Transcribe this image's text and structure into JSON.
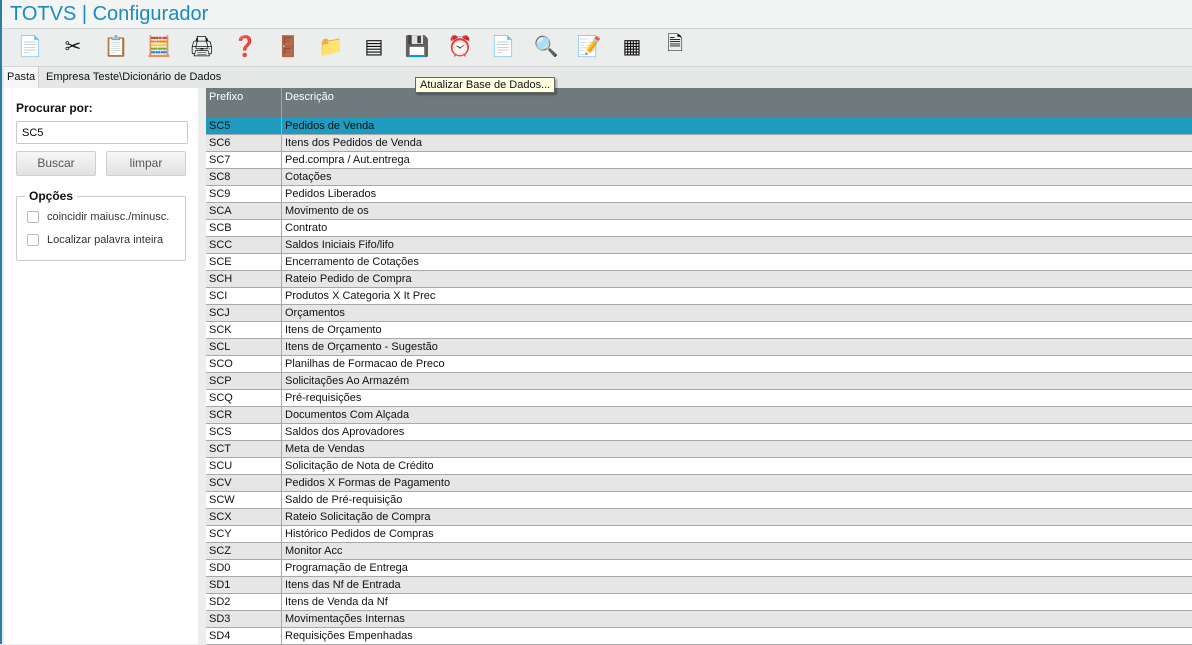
{
  "app_title": "TOTVS | Configurador",
  "toolbar": [
    {
      "icon": "copy-icon",
      "glyph": "📄"
    },
    {
      "icon": "cut-icon",
      "glyph": "✂"
    },
    {
      "icon": "paste-icon",
      "glyph": "📋"
    },
    {
      "icon": "calculator-icon",
      "glyph": "🧮"
    },
    {
      "icon": "print-icon",
      "glyph": "🖨"
    },
    {
      "icon": "help-icon",
      "glyph": "❓"
    },
    {
      "icon": "exit-icon",
      "glyph": "🚪"
    },
    {
      "icon": "folder-icon",
      "glyph": "📁"
    },
    {
      "icon": "list-icon",
      "glyph": "▤"
    },
    {
      "icon": "save-database-icon",
      "glyph": "💾"
    },
    {
      "icon": "scheduled-save-icon",
      "glyph": "⏰"
    },
    {
      "icon": "add-document-icon",
      "glyph": "📄"
    },
    {
      "icon": "search-document-icon",
      "glyph": "🔍"
    },
    {
      "icon": "edit-icon",
      "glyph": "📝"
    },
    {
      "icon": "table-icon",
      "glyph": "▦"
    },
    {
      "icon": "document-icon",
      "glyph": "🗎"
    }
  ],
  "tooltip": "Atualizar Base de Dados...",
  "path": {
    "label": "Pasta",
    "value": "Empresa Teste\\Dicionário de Dados"
  },
  "search": {
    "label": "Procurar por:",
    "value": "SC5",
    "buscar": "Buscar",
    "limpar": "limpar"
  },
  "options": {
    "title": "Opções",
    "case": "coincidir maiusc./minusc.",
    "whole": "Localizar palavra inteira"
  },
  "columns": [
    "Prefixo",
    "Descrição"
  ],
  "rows": [
    [
      "SC5",
      "Pedidos de Venda"
    ],
    [
      "SC6",
      "Itens dos Pedidos de Venda"
    ],
    [
      "SC7",
      "Ped.compra / Aut.entrega"
    ],
    [
      "SC8",
      "Cotações"
    ],
    [
      "SC9",
      "Pedidos Liberados"
    ],
    [
      "SCA",
      "Movimento de os"
    ],
    [
      "SCB",
      "Contrato"
    ],
    [
      "SCC",
      "Saldos Iniciais Fifo/lifo"
    ],
    [
      "SCE",
      "Encerramento de Cotações"
    ],
    [
      "SCH",
      "Rateio Pedido de Compra"
    ],
    [
      "SCI",
      "Produtos X Categoria X It Prec"
    ],
    [
      "SCJ",
      "Orçamentos"
    ],
    [
      "SCK",
      "Itens de Orçamento"
    ],
    [
      "SCL",
      "Itens de Orçamento - Sugestão"
    ],
    [
      "SCO",
      "Planilhas de Formacao de Preco"
    ],
    [
      "SCP",
      "Solicitações Ao Armazém"
    ],
    [
      "SCQ",
      "Pré-requisições"
    ],
    [
      "SCR",
      "Documentos Com Alçada"
    ],
    [
      "SCS",
      "Saldos dos Aprovadores"
    ],
    [
      "SCT",
      "Meta de Vendas"
    ],
    [
      "SCU",
      "Solicitação de Nota de Crédito"
    ],
    [
      "SCV",
      "Pedidos X Formas de Pagamento"
    ],
    [
      "SCW",
      "Saldo de Pré-requisição"
    ],
    [
      "SCX",
      "Rateio Solicitação de Compra"
    ],
    [
      "SCY",
      "Histórico Pedidos de Compras"
    ],
    [
      "SCZ",
      "Monitor Acc"
    ],
    [
      "SD0",
      "Programação de Entrega"
    ],
    [
      "SD1",
      "Itens das Nf de Entrada"
    ],
    [
      "SD2",
      "Itens de Venda da Nf"
    ],
    [
      "SD3",
      "Movimentações Internas"
    ],
    [
      "SD4",
      "Requisições Empenhadas"
    ]
  ],
  "selected_row": 0,
  "colors": {
    "title": "#1a8bc0",
    "selected": "#1e9bbf",
    "header": "#6e7a7e"
  }
}
